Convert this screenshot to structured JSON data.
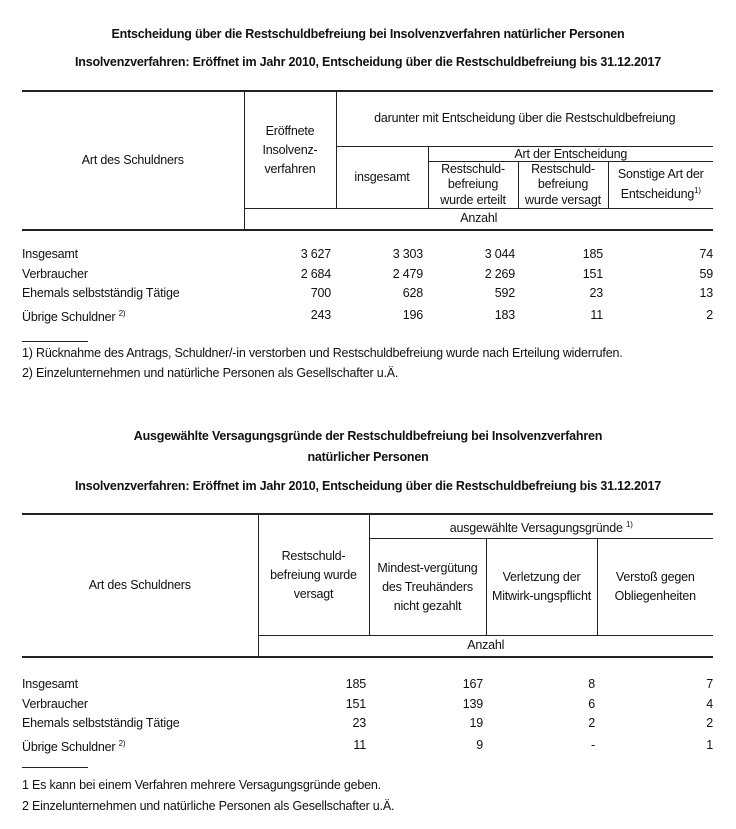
{
  "table1": {
    "title": "Entscheidung über die Restschuldbefreiung bei Insolvenzverfahren natürlicher Personen",
    "subtitle": "Insolvenzverfahren: Eröffnet im Jahr 2010, Entscheidung über die Restschuldbefreiung bis 31.12.2017",
    "headers": {
      "row_label": "Art des Schuldners",
      "opened": "Eröffnete Insolvenz-verfahren",
      "group": "darunter mit Entscheidung über die Restschuldbefreiung",
      "total": "insgesamt",
      "subgroup": "Art der Entscheidung",
      "granted": "Restschuld-befreiung wurde erteilt",
      "denied": "Restschuld-befreiung wurde versagt",
      "other": "Sonstige Art der Entscheidung",
      "other_note": "1)",
      "unit": "Anzahl"
    },
    "rows": [
      {
        "label": "Insgesamt",
        "note": "",
        "values": [
          "3 627",
          "3 303",
          "3 044",
          "185",
          "74"
        ]
      },
      {
        "label": "Verbraucher",
        "note": "",
        "values": [
          "2 684",
          "2 479",
          "2 269",
          "151",
          "59"
        ]
      },
      {
        "label": "Ehemals selbstständig Tätige",
        "note": "",
        "values": [
          "700",
          "628",
          "592",
          "23",
          "13"
        ]
      },
      {
        "label": "Übrige Schuldner",
        "note": "2)",
        "values": [
          "243",
          "196",
          "183",
          "11",
          "2"
        ]
      }
    ],
    "footnotes": [
      "1) Rücknahme des Antrags, Schuldner/-in verstorben und Restschuldbefreiung wurde nach Erteilung widerrufen.",
      "2) Einzelunternehmen und natürliche Personen als Gesellschafter u.Ä."
    ]
  },
  "table2": {
    "title": "Ausgewählte Versagungsgründe der Restschuldbefreiung bei Insolvenzverfahren",
    "title_line2": "natürlicher Personen",
    "subtitle": "Insolvenzverfahren: Eröffnet im Jahr 2010, Entscheidung über die Restschuldbefreiung bis 31.12.2017",
    "headers": {
      "row_label": "Art des Schuldners",
      "denied": "Restschuld-befreiung wurde versagt",
      "group": "ausgewählte Versagungsgründe",
      "group_note": "1)",
      "fee": "Mindest-vergütung des Treuhänders nicht gezahlt",
      "cooperation": "Verletzung der Mitwirk-ungspflicht",
      "obligations": "Verstoß gegen Obliegenheiten",
      "unit": "Anzahl"
    },
    "rows": [
      {
        "label": "Insgesamt",
        "note": "",
        "values": [
          "185",
          "167",
          "8",
          "7"
        ]
      },
      {
        "label": "Verbraucher",
        "note": "",
        "values": [
          "151",
          "139",
          "6",
          "4"
        ]
      },
      {
        "label": "Ehemals selbstständig Tätige",
        "note": "",
        "values": [
          "23",
          "19",
          "2",
          "2"
        ]
      },
      {
        "label": "Übrige Schuldner",
        "note": "2)",
        "values": [
          "11",
          "9",
          "-",
          "1"
        ]
      }
    ],
    "footnotes": [
      "1 Es kann bei einem Verfahren mehrere Versagungsgründe geben.",
      "2 Einzelunternehmen und natürliche Personen als Gesellschafter u.Ä."
    ]
  }
}
